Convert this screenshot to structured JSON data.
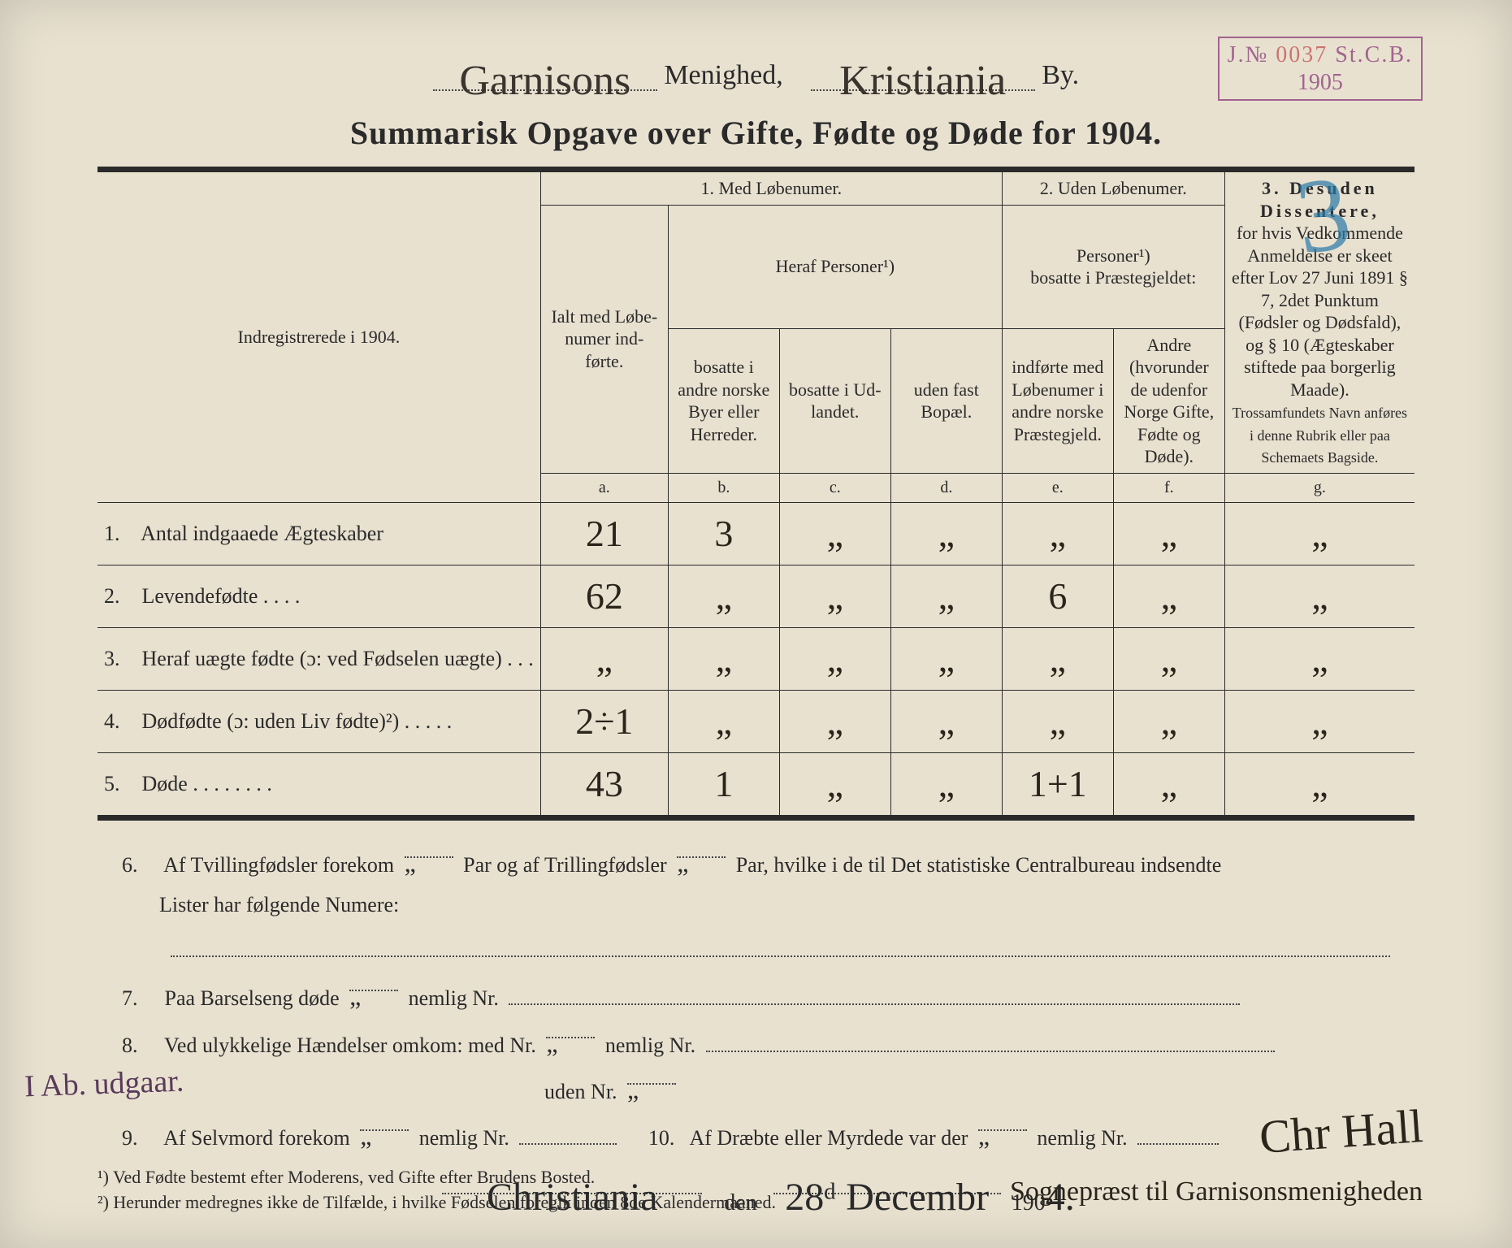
{
  "stamp": {
    "jn_label": "J.№",
    "jn_number": "0037",
    "office": "St.C.B.",
    "year": "1905"
  },
  "header": {
    "parish": "Garnisons",
    "parish_label": "Menighed,",
    "city": "Kristiania",
    "city_label": "By."
  },
  "title": "Summarisk Opgave over Gifte, Fødte og Døde for 1904.",
  "overlay_digit": "3",
  "table": {
    "row_header": "Indregistrerede i 1904.",
    "sec1_title": "1.  Med Løbenumer.",
    "sec2_title": "2. Uden Løbenumer.",
    "sec3_title": "3.  Desuden Dissentere,",
    "heraf": "Heraf Personer¹)",
    "personer2": "Personer¹)\nbosatte i Præstegjeldet:",
    "col_a": "Ialt med Løbe-numer ind-førte.",
    "col_b": "bosatte i andre norske Byer eller Herreder.",
    "col_c": "bosatte i Ud-landet.",
    "col_d": "uden fast Bopæl.",
    "col_e": "indførte med Løbenumer i andre norske Præstegjeld.",
    "col_f": "Andre (hvorunder de udenfor Norge Gifte, Fødte og Døde).",
    "sec3_body": "for hvis Vedkommende Anmeldelse er skeet efter Lov 27 Juni 1891 § 7, 2det Punktum (Fødsler og Dødsfald), og § 10 (Ægteskaber stiftede paa borgerlig Maade).",
    "sec3_small": "Trossamfundets Navn anføres i denne Rubrik eller paa Schemaets Bagside.",
    "labels": {
      "a": "a.",
      "b": "b.",
      "c": "c.",
      "d": "d.",
      "e": "e.",
      "f": "f.",
      "g": "g."
    },
    "rows": [
      {
        "n": "1.",
        "label": "Antal indgaaede Ægteskaber",
        "a": "21",
        "b": "3",
        "c": "„",
        "d": "„",
        "e": "„",
        "f": "„",
        "g": "„"
      },
      {
        "n": "2.",
        "label": "Levendefødte   .   .   .   .",
        "a": "62",
        "b": "„",
        "c": "„",
        "d": "„",
        "e": "6",
        "f": "„",
        "g": "„"
      },
      {
        "n": "3.",
        "label": "Heraf uægte fødte (ɔ: ved Fødselen uægte)  .  .  .",
        "a": "„",
        "b": "„",
        "c": "„",
        "d": "„",
        "e": "„",
        "f": "„",
        "g": "„"
      },
      {
        "n": "4.",
        "label": "Dødfødte (ɔ: uden Liv fødte)²)  .  .  .  .  .",
        "a": "2÷1",
        "b": "„",
        "c": "„",
        "d": "„",
        "e": "„",
        "f": "„",
        "g": "„"
      },
      {
        "n": "5.",
        "label": "Døde .  .  .  .  .  .  .  .",
        "a": "43",
        "b": "1",
        "c": "„",
        "d": "„",
        "e": "1+1",
        "f": "„",
        "g": "„"
      }
    ]
  },
  "lower": {
    "l6a": "Af Tvillingfødsler forekom",
    "l6_twin": "„",
    "l6b": "Par og af Trillingfødsler",
    "l6_trip": "„",
    "l6c": "Par, hvilke i de til Det statistiske Centralbureau indsendte",
    "l6d": "Lister har følgende Numere:",
    "l7a": "Paa Barselseng døde",
    "l7_v": "„",
    "l7b": "nemlig Nr.",
    "l8a": "Ved ulykkelige Hændelser omkom:  med  Nr.",
    "l8_v1": "„",
    "l8b": "nemlig Nr.",
    "l8c": "uden Nr.",
    "l8_v2": "„",
    "l9a": "Af Selvmord forekom",
    "l9_v": "„",
    "l9b": "nemlig Nr.",
    "l10a": "Af Dræbte eller Myrdede var der",
    "l10_v": "„",
    "l10b": "nemlig Nr."
  },
  "sig": {
    "place": "Christiania",
    "den": "den",
    "date": "28ᵈ Decembr",
    "year_prefix": "190",
    "year_last": "4.",
    "signature": "Chr Hall",
    "sub": "Sognepræst til Garnisonsmenigheden"
  },
  "margin_note": "I Ab. udgaar.",
  "footnotes": {
    "f1": "¹) Ved Fødte bestemt efter Moderens, ved Gifte efter Brudens Bosted.",
    "f2": "²) Herunder medregnes ikke de Tilfælde, i hvilke Fødselen foregik inden 8de Kalendermaaned."
  }
}
